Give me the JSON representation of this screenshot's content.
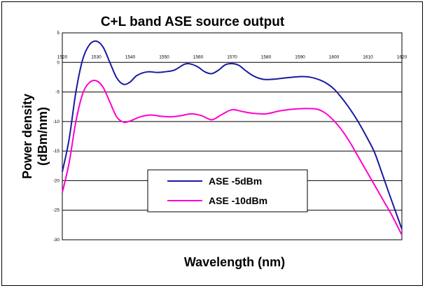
{
  "chart_data": {
    "type": "line",
    "title": "C+L band ASE source output",
    "xlabel": "Wavelength (nm)",
    "ylabel_line1": "Power density",
    "ylabel_line2": "(dBm/nm)",
    "xlim": [
      1520,
      1620
    ],
    "ylim": [
      -30,
      5
    ],
    "x_ticks": [
      "1520",
      "1530",
      "1540",
      "1550",
      "1560",
      "1570",
      "1580",
      "1590",
      "1600",
      "1610",
      "1620"
    ],
    "y_ticks": [
      "5",
      "0",
      "-5",
      "-10",
      "-15",
      "-20",
      "-25",
      "-30"
    ],
    "grid": "horizontal",
    "legend_position": "lower-center",
    "series": [
      {
        "name": "ASE -5dBm",
        "color": "#1a1aa0",
        "x": [
          1520,
          1522,
          1524,
          1526,
          1528,
          1530,
          1532,
          1534,
          1536,
          1538,
          1540,
          1542,
          1545,
          1548,
          1550,
          1553,
          1556,
          1558,
          1560,
          1562,
          1564,
          1566,
          1568,
          1570,
          1572,
          1574,
          1576,
          1578,
          1580,
          1583,
          1586,
          1590,
          1593,
          1596,
          1598,
          1600,
          1602,
          1604,
          1606,
          1608,
          1610,
          1612,
          1614,
          1616,
          1618,
          1620
        ],
        "y": [
          -18.5,
          -13,
          -5,
          0.5,
          3,
          3.6,
          2.6,
          0,
          -2.6,
          -3.7,
          -3.3,
          -2.2,
          -1.6,
          -1.7,
          -1.6,
          -1.3,
          -0.3,
          -0.3,
          -0.8,
          -1.6,
          -1.9,
          -1.3,
          -0.4,
          -0.2,
          -0.5,
          -1.4,
          -2.2,
          -2.7,
          -2.9,
          -2.8,
          -2.6,
          -2.4,
          -2.5,
          -3,
          -3.6,
          -4.5,
          -5.8,
          -7.3,
          -9,
          -10.9,
          -13,
          -15.3,
          -18.5,
          -21.8,
          -25,
          -28.2
        ]
      },
      {
        "name": "ASE -10dBm",
        "color": "#ff00cc",
        "x": [
          1520,
          1522,
          1524,
          1526,
          1528,
          1530,
          1532,
          1534,
          1536,
          1538,
          1540,
          1543,
          1546,
          1549,
          1552,
          1555,
          1558,
          1561,
          1564,
          1567,
          1570,
          1573,
          1576,
          1580,
          1584,
          1588,
          1592,
          1595,
          1597,
          1599,
          1601,
          1603,
          1605,
          1607,
          1609,
          1611,
          1613,
          1615,
          1617,
          1620
        ],
        "y": [
          -22,
          -17,
          -10,
          -5.3,
          -3.4,
          -3.1,
          -4.2,
          -6.7,
          -9.2,
          -10.1,
          -9.9,
          -9.2,
          -8.9,
          -9.1,
          -9.2,
          -9.0,
          -8.7,
          -9.0,
          -9.7,
          -8.8,
          -8.0,
          -8.3,
          -8.6,
          -8.7,
          -8.2,
          -7.9,
          -7.8,
          -7.9,
          -8.4,
          -9.3,
          -10.5,
          -12,
          -13.8,
          -15.8,
          -17.8,
          -19.8,
          -21.8,
          -23.8,
          -25.8,
          -29.2
        ]
      }
    ]
  }
}
